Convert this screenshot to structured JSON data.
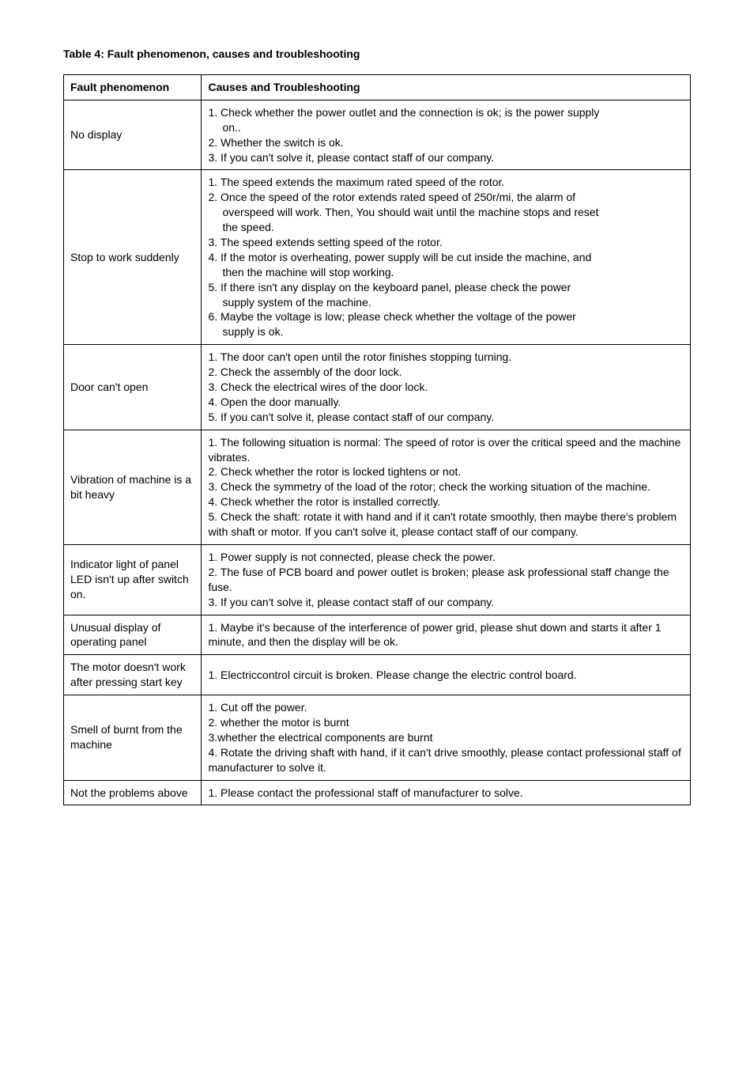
{
  "title": "Table 4: Fault phenomenon, causes and troubleshooting",
  "headers": {
    "col1": "Fault phenomenon",
    "col2": "Causes and Troubleshooting"
  },
  "rows": [
    {
      "phenomenon": "No display",
      "lines": [
        {
          "t": "1. Check whether the power outlet and the connection is ok; is the power supply",
          "indent": false
        },
        {
          "t": "on..",
          "indent": true
        },
        {
          "t": "2. Whether the switch is ok.",
          "indent": false
        },
        {
          "t": "3. If you can't solve it, please contact staff of our company.",
          "indent": false
        }
      ]
    },
    {
      "phenomenon": "Stop to work suddenly",
      "lines": [
        {
          "t": "1. The speed extends the maximum rated speed of the rotor.",
          "indent": false
        },
        {
          "t": "2. Once the speed of the rotor extends rated speed of 250r/mi, the alarm of",
          "indent": false
        },
        {
          "t": "overspeed will work. Then, You should wait until the machine stops and reset",
          "indent": true
        },
        {
          "t": "the speed.",
          "indent": true
        },
        {
          "t": "3. The speed extends setting speed of the rotor.",
          "indent": false
        },
        {
          "t": "4. If the motor is overheating, power supply will be cut inside the machine, and",
          "indent": false
        },
        {
          "t": "then the machine will stop working.",
          "indent": true
        },
        {
          "t": "5. If there isn't any display on the keyboard panel, please check the power",
          "indent": false
        },
        {
          "t": "supply system of the machine.",
          "indent": true
        },
        {
          "t": "6. Maybe the voltage is low; please check whether the voltage of the power",
          "indent": false
        },
        {
          "t": "supply is ok.",
          "indent": true
        }
      ]
    },
    {
      "phenomenon": "Door can't open",
      "lines": [
        {
          "t": "1. The door can't open until the rotor finishes stopping turning.",
          "indent": false
        },
        {
          "t": "2. Check the assembly of the door lock.",
          "indent": false
        },
        {
          "t": "3. Check the electrical wires of the door lock.",
          "indent": false
        },
        {
          "t": "4. Open the door manually.",
          "indent": false
        },
        {
          "t": "5. If you can't solve it, please contact staff of our company.",
          "indent": false
        }
      ]
    },
    {
      "phenomenon": "Vibration of machine is a bit heavy",
      "lines": [
        {
          "t": "1. The following situation is normal: The speed of rotor is over the critical speed and the machine vibrates.",
          "indent": false
        },
        {
          "t": "2. Check whether the rotor is locked tightens or not.",
          "indent": false
        },
        {
          "t": "3. Check the symmetry of the load of the rotor; check the working situation of the machine.",
          "indent": false
        },
        {
          "t": "4. Check whether the rotor is installed correctly.",
          "indent": false
        },
        {
          "t": "5. Check the shaft: rotate it with hand and if it can't rotate smoothly, then maybe there's problem with shaft or motor. If you can't solve it, please contact staff of our company.",
          "indent": false
        }
      ]
    },
    {
      "phenomenon": "Indicator light of panel LED isn't up after switch on.",
      "lines": [
        {
          "t": "1. Power supply is not connected, please check the power.",
          "indent": false
        },
        {
          "t": "2. The fuse of PCB board and power outlet is broken; please ask professional staff change the fuse.",
          "indent": false
        },
        {
          "t": "3. If you can't solve it, please contact staff of our company.",
          "indent": false
        }
      ]
    },
    {
      "phenomenon": "Unusual display of operating panel",
      "lines": [
        {
          "t": "1. Maybe it's because of the interference of power grid, please shut down and starts it after 1 minute, and then the display will be ok.",
          "indent": false
        }
      ]
    },
    {
      "phenomenon": "The motor doesn't work after pressing start key",
      "lines": [
        {
          "t": "1. Electriccontrol circuit is broken. Please change the electric control board.",
          "indent": false
        }
      ]
    },
    {
      "phenomenon": "Smell of burnt from the machine",
      "lines": [
        {
          "t": "1. Cut off the power.",
          "indent": false
        },
        {
          "t": "2. whether the motor is burnt",
          "indent": false
        },
        {
          "t": "3.whether the electrical components are burnt",
          "indent": false
        },
        {
          "t": "4. Rotate the driving shaft with hand, if it can't drive smoothly, please contact professional staff of manufacturer to solve it.",
          "indent": false
        }
      ]
    },
    {
      "phenomenon": "Not the problems above",
      "lines": [
        {
          "t": "1. Please contact the professional staff of manufacturer to solve.",
          "indent": false
        }
      ]
    }
  ]
}
